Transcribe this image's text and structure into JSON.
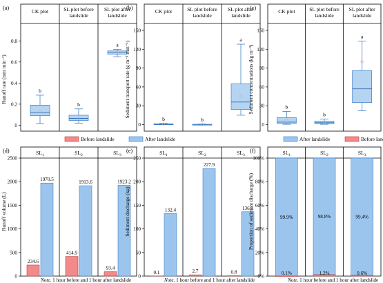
{
  "colors": {
    "before": "#f28a8a",
    "before_edge": "#c0393b",
    "after": "#9cc5ee",
    "after_light": "#d9eafb",
    "after_edge": "#3b7fc4",
    "median": "#2f6fb5"
  },
  "legend": {
    "before": "Before landslide",
    "after": "After landslide"
  },
  "note": {
    "prefix": "Note.",
    "text": " 1 hour before and 1 hour after landslide"
  },
  "chart_data": [
    {
      "id": "a",
      "panel_label": "(a)",
      "type": "box",
      "ylabel": "Runoff rate (mm min⁻¹)",
      "ylim": [
        -0.03,
        0.9
      ],
      "yticks": [
        0,
        0.2,
        0.4,
        0.6,
        0.8
      ],
      "ytick_labels": [
        "0",
        "0.2",
        "0.4",
        "0.6",
        "0.8"
      ],
      "groups": [
        "CK plot",
        "SL plot before landslide",
        "SL plot after landslide"
      ],
      "boxes": [
        {
          "min": 0.015,
          "q1": 0.09,
          "median": 0.12,
          "q3": 0.19,
          "max": 0.285,
          "mean": 0.135,
          "sig": "b"
        },
        {
          "min": 0.02,
          "q1": 0.045,
          "median": 0.065,
          "q3": 0.095,
          "max": 0.155,
          "mean": 0.065,
          "sig": "b"
        },
        {
          "min": 0.65,
          "q1": 0.675,
          "median": 0.69,
          "q3": 0.705,
          "max": 0.72,
          "mean": 0.69,
          "sig": "a"
        }
      ]
    },
    {
      "id": "b",
      "panel_label": "(b)",
      "type": "box",
      "ylabel": "Sediment transport rate (g m⁻² min⁻¹)",
      "ylim": [
        -6,
        150
      ],
      "yticks": [
        0,
        30,
        60,
        90,
        120,
        150
      ],
      "ytick_labels": [
        "0",
        "30",
        "60",
        "90",
        "120",
        "150"
      ],
      "groups": [
        "CK plot",
        "SL plot before landslide",
        "SL plot after landslide"
      ],
      "boxes": [
        {
          "min": 0,
          "q1": 0.3,
          "median": 0.7,
          "q3": 1.2,
          "max": 1.8,
          "mean": 0.7,
          "sig": "b"
        },
        {
          "min": 0,
          "q1": 0.1,
          "median": 0.3,
          "q3": 0.5,
          "max": 0.8,
          "mean": 0.3,
          "sig": "b"
        },
        {
          "min": 15,
          "q1": 24,
          "median": 36,
          "q3": 65,
          "max": 128,
          "mean": 45,
          "sig": "a"
        }
      ]
    },
    {
      "id": "c",
      "panel_label": "(c)",
      "type": "box",
      "ylabel": "Sediment concentrations (kg m⁻³)",
      "ylim": [
        -6,
        150
      ],
      "yticks": [
        0,
        30,
        60,
        90,
        120,
        150
      ],
      "ytick_labels": [
        "0",
        "30",
        "60",
        "90",
        "120",
        "150"
      ],
      "groups": [
        "CK plot",
        "SL plot before landslide",
        "SL plot after landslide"
      ],
      "boxes": [
        {
          "min": 0.5,
          "q1": 2,
          "median": 4,
          "q3": 11,
          "max": 21,
          "mean": 6,
          "sig": "b"
        },
        {
          "min": 0.5,
          "q1": 1.5,
          "median": 3,
          "q3": 5.5,
          "max": 9,
          "mean": 3,
          "sig": "b"
        },
        {
          "min": 22,
          "q1": 35,
          "median": 57,
          "q3": 86,
          "max": 133,
          "mean": 100,
          "sig": "a"
        }
      ]
    },
    {
      "id": "d",
      "panel_label": "(d)",
      "type": "bar",
      "ylabel": "Runoff volume (L)",
      "ylim": [
        0,
        2500
      ],
      "yticks": [
        0,
        500,
        1000,
        1500,
        2000,
        2500
      ],
      "ytick_labels": [
        "0",
        "500",
        "1000",
        "1500",
        "2000",
        "2500"
      ],
      "groups": [
        "SL",
        "SL",
        "SL"
      ],
      "group_subs": [
        "1",
        "2",
        "3"
      ],
      "before": [
        234.6,
        414.9,
        93.4
      ],
      "after": [
        1970.5,
        1913.6,
        1923.2
      ],
      "before_labels": [
        "234.6",
        "414.9",
        "93.4"
      ],
      "after_labels": [
        "1970.5",
        "1913.6",
        "1923.2"
      ]
    },
    {
      "id": "e",
      "panel_label": "(e)",
      "type": "bar",
      "ylabel": "Sediment discharge (kg)",
      "ylim": [
        0,
        250
      ],
      "yticks": [
        0,
        50,
        100,
        150,
        200,
        250
      ],
      "ytick_labels": [
        "0",
        "50",
        "100",
        "150",
        "200",
        "250"
      ],
      "groups": [
        "SL",
        "SL",
        "SL"
      ],
      "group_subs": [
        "1",
        "2",
        "3"
      ],
      "before": [
        0.1,
        2.7,
        0.8
      ],
      "after": [
        132.4,
        227.9,
        136.3
      ],
      "before_labels": [
        "0.1",
        "2.7",
        "0.8"
      ],
      "after_labels": [
        "132.4",
        "227.9",
        "136.3"
      ]
    },
    {
      "id": "f",
      "panel_label": "(f)",
      "type": "stacked-bar",
      "ylabel": "Proportion of sediment discharge (%)",
      "ylim": [
        0,
        100
      ],
      "yticks": [
        0,
        20,
        40,
        60,
        80,
        100
      ],
      "ytick_labels": [
        "0%",
        "20%",
        "40%",
        "60%",
        "80%",
        "100%"
      ],
      "groups": [
        "SL",
        "SL",
        "SL"
      ],
      "group_subs": [
        "1",
        "2",
        "3"
      ],
      "before": [
        0.1,
        1.2,
        0.6
      ],
      "after": [
        99.9,
        98.8,
        99.4
      ],
      "before_labels": [
        "0.1%",
        "1.2%",
        "0.6%"
      ],
      "after_labels": [
        "99.9%",
        "98.8%",
        "99.4%"
      ]
    }
  ]
}
